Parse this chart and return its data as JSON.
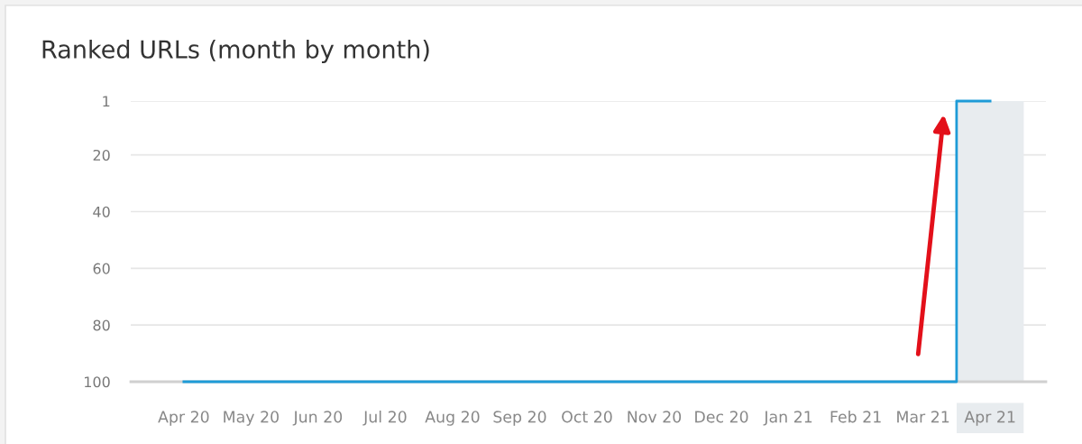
{
  "chart_data": {
    "type": "step",
    "title": "Ranked URLs (month by month)",
    "categories": [
      "Apr 20",
      "May 20",
      "Jun 20",
      "Jul 20",
      "Aug 20",
      "Sep 20",
      "Oct 20",
      "Nov 20",
      "Dec 20",
      "Jan 21",
      "Feb 21",
      "Mar 21",
      "Apr 21"
    ],
    "values": [
      100,
      100,
      100,
      100,
      100,
      100,
      100,
      100,
      100,
      100,
      100,
      100,
      1
    ],
    "color": "#1e9bd7",
    "ylim": [
      100,
      1
    ],
    "yticks": [
      1,
      20,
      40,
      60,
      80,
      100
    ],
    "grid": "y",
    "bands": [
      {
        "axis": "x",
        "from": "Apr 21",
        "to": "Apr 21",
        "color": "#e8ecef"
      }
    ]
  }
}
